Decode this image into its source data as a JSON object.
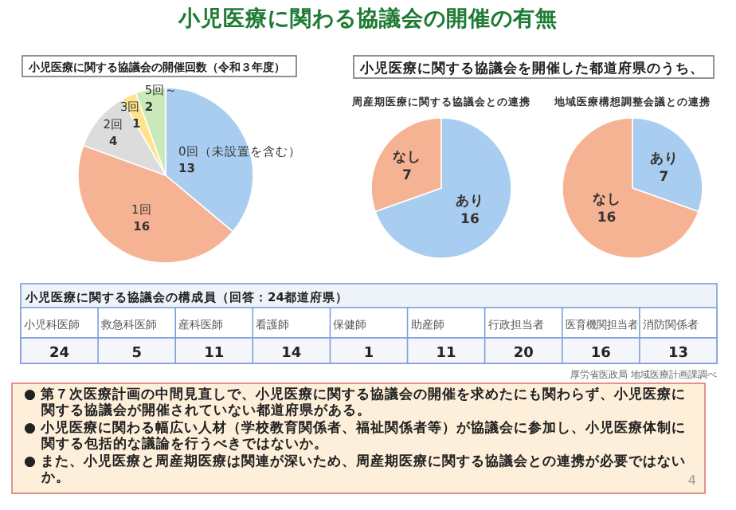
{
  "chart_data": [
    {
      "type": "other",
      "title": "小児医療に関わる協議会の開催の有無"
    },
    {
      "type": "pie",
      "title": "小児医療に関する協議会の開催回数（令和３年度）",
      "categories": [
        "0回（未設置を含む）",
        "1回",
        "2回",
        "3回",
        "5回～"
      ],
      "values": [
        13,
        16,
        4,
        1,
        2
      ],
      "colors": [
        "#a9cdf0",
        "#f6b394",
        "#dcdcdc",
        "#ffe38a",
        "#c9eab8"
      ],
      "data_labels": true
    },
    {
      "type": "pie",
      "title": "小児医療に関する協議会を開催した都道府県のうち、",
      "subtitle": "周産期医療に関する協議会との連携",
      "categories": [
        "あり",
        "なし"
      ],
      "values": [
        16,
        7
      ],
      "colors": [
        "#a9cdf0",
        "#f6b394"
      ],
      "data_labels": true
    },
    {
      "type": "pie",
      "title": "地域医療構想調整会議との連携",
      "categories": [
        "あり",
        "なし"
      ],
      "values": [
        7,
        16
      ],
      "colors": [
        "#a9cdf0",
        "#f6b394"
      ],
      "data_labels": true
    },
    {
      "type": "other",
      "title": "小児医療に関する協議会の構成員（回答：24都道府県）",
      "categories": [
        "小児科医師",
        "救急科医師",
        "産科医師",
        "看護師",
        "保健師",
        "助産師",
        "行政担当者",
        "医育機関担当者",
        "消防関係者"
      ],
      "values": [
        24,
        5,
        11,
        14,
        1,
        11,
        20,
        16,
        13
      ],
      "data_labels": true,
      "annotations": [
        "厚労省医政局 地域医療計画課調べ"
      ]
    },
    {
      "type": "other",
      "annotations": [
        "● 第７次医療計画の中間見直しで、小児医療に関する協議会の開催を求めたにも関わらず、小児医療に関する協議会が開催されていない都道府県がある。",
        "● 小児医療に関わる幅広い人材（学校教育関係者、福祉関係者等）が協議会に参加し、小児医療体制に関する包括的な議論を行うべきではないか。",
        "● また、小児医療と周産期医療は関連が深いため、周産期医療に関する協議会との連携が必要ではないか。",
        "4"
      ]
    }
  ]
}
